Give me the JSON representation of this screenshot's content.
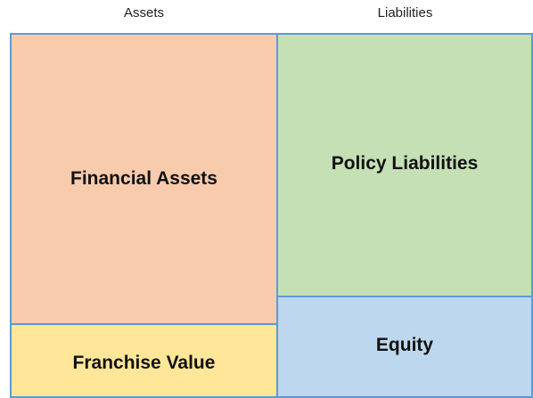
{
  "columns": [
    {
      "header": "Assets",
      "blocks": [
        {
          "label": "Financial Assets"
        },
        {
          "label": "Franchise Value"
        }
      ]
    },
    {
      "header": "Liabilities",
      "blocks": [
        {
          "label": "Policy Liabilities"
        },
        {
          "label": "Equity"
        }
      ]
    }
  ]
}
